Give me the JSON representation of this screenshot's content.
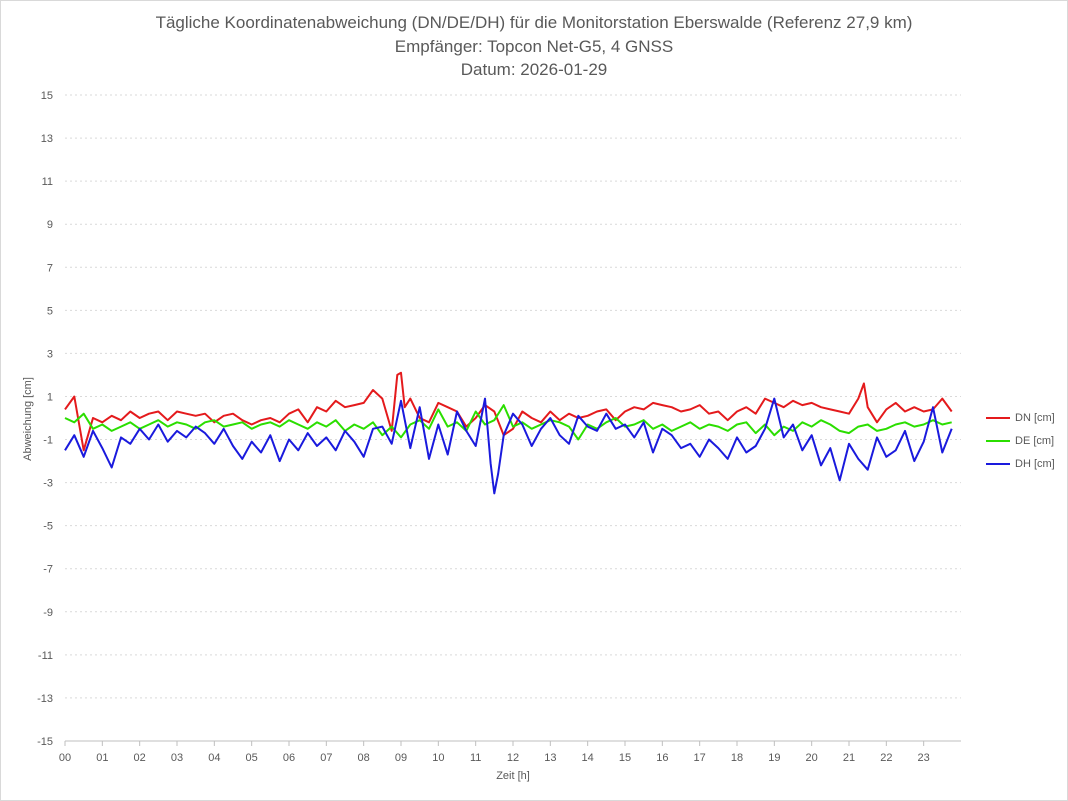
{
  "chart_data": {
    "type": "line",
    "title": [
      "Tägliche Koordinatenabweichung (DN/DE/DH) für die Monitorstation Eberswalde (Referenz 27,9 km)",
      "Empfänger: Topcon Net-G5, 4 GNSS",
      "Datum: 2026-01-29"
    ],
    "xlabel": "Zeit [h]",
    "ylabel": "Abweichung [cm]",
    "xlim": [
      0,
      24
    ],
    "ylim": [
      -15,
      15
    ],
    "x_ticks": [
      {
        "value": 0,
        "label": "00"
      },
      {
        "value": 1,
        "label": "01"
      },
      {
        "value": 2,
        "label": "02"
      },
      {
        "value": 3,
        "label": "03"
      },
      {
        "value": 4,
        "label": "04"
      },
      {
        "value": 5,
        "label": "05"
      },
      {
        "value": 6,
        "label": "06"
      },
      {
        "value": 7,
        "label": "07"
      },
      {
        "value": 8,
        "label": "08"
      },
      {
        "value": 9,
        "label": "09"
      },
      {
        "value": 10,
        "label": "10"
      },
      {
        "value": 11,
        "label": "11"
      },
      {
        "value": 12,
        "label": "12"
      },
      {
        "value": 13,
        "label": "13"
      },
      {
        "value": 14,
        "label": "14"
      },
      {
        "value": 15,
        "label": "15"
      },
      {
        "value": 16,
        "label": "16"
      },
      {
        "value": 17,
        "label": "17"
      },
      {
        "value": 18,
        "label": "18"
      },
      {
        "value": 19,
        "label": "19"
      },
      {
        "value": 20,
        "label": "20"
      },
      {
        "value": 21,
        "label": "21"
      },
      {
        "value": 22,
        "label": "22"
      },
      {
        "value": 23,
        "label": "23"
      }
    ],
    "y_ticks": [
      {
        "value": 15,
        "label": "15"
      },
      {
        "value": 13,
        "label": "13"
      },
      {
        "value": 11,
        "label": "11"
      },
      {
        "value": 9,
        "label": "9"
      },
      {
        "value": 7,
        "label": "7"
      },
      {
        "value": 5,
        "label": "5"
      },
      {
        "value": 3,
        "label": "3"
      },
      {
        "value": 1,
        "label": "1"
      },
      {
        "value": -1,
        "label": "-1"
      },
      {
        "value": -3,
        "label": "-3"
      },
      {
        "value": -5,
        "label": "-5"
      },
      {
        "value": -7,
        "label": "-7"
      },
      {
        "value": -9,
        "label": "-9"
      },
      {
        "value": -11,
        "label": "-11"
      },
      {
        "value": -13,
        "label": "-13"
      },
      {
        "value": -15,
        "label": "-15"
      }
    ],
    "grid": "horizontal dotted",
    "legend_position": "right",
    "series": [
      {
        "name": "DN [cm]",
        "color": "#e41a1c",
        "x": [
          0.0,
          0.25,
          0.5,
          0.75,
          1.0,
          1.25,
          1.5,
          1.75,
          2.0,
          2.25,
          2.5,
          2.75,
          3.0,
          3.25,
          3.5,
          3.75,
          4.0,
          4.25,
          4.5,
          4.75,
          5.0,
          5.25,
          5.5,
          5.75,
          6.0,
          6.25,
          6.5,
          6.75,
          7.0,
          7.25,
          7.5,
          7.75,
          8.0,
          8.25,
          8.5,
          8.75,
          8.9,
          9.0,
          9.1,
          9.25,
          9.5,
          9.75,
          10.0,
          10.25,
          10.5,
          10.75,
          11.0,
          11.25,
          11.5,
          11.75,
          12.0,
          12.25,
          12.5,
          12.75,
          13.0,
          13.25,
          13.5,
          13.75,
          14.0,
          14.25,
          14.5,
          14.75,
          15.0,
          15.25,
          15.5,
          15.75,
          16.0,
          16.25,
          16.5,
          16.75,
          17.0,
          17.25,
          17.5,
          17.75,
          18.0,
          18.25,
          18.5,
          18.75,
          19.0,
          19.25,
          19.5,
          19.75,
          20.0,
          20.25,
          20.5,
          20.75,
          21.0,
          21.25,
          21.4,
          21.5,
          21.75,
          22.0,
          22.25,
          22.5,
          22.75,
          23.0,
          23.25,
          23.5,
          23.75
        ],
        "values": [
          0.4,
          1.0,
          -1.5,
          0.0,
          -0.2,
          0.1,
          -0.1,
          0.3,
          0.0,
          0.2,
          0.3,
          -0.1,
          0.3,
          0.2,
          0.1,
          0.2,
          -0.2,
          0.1,
          0.2,
          -0.1,
          -0.3,
          -0.1,
          0.0,
          -0.2,
          0.2,
          0.4,
          -0.2,
          0.5,
          0.3,
          0.8,
          0.5,
          0.6,
          0.7,
          1.3,
          0.9,
          -0.6,
          2.0,
          2.1,
          0.5,
          0.9,
          0.0,
          -0.2,
          0.7,
          0.5,
          0.3,
          -0.4,
          0.0,
          0.6,
          0.3,
          -0.8,
          -0.5,
          0.3,
          0.0,
          -0.2,
          0.3,
          -0.1,
          0.2,
          0.0,
          0.1,
          0.3,
          0.4,
          -0.1,
          0.3,
          0.5,
          0.4,
          0.7,
          0.6,
          0.5,
          0.3,
          0.4,
          0.6,
          0.2,
          0.3,
          -0.1,
          0.3,
          0.5,
          0.2,
          0.9,
          0.7,
          0.5,
          0.8,
          0.6,
          0.7,
          0.5,
          0.4,
          0.3,
          0.2,
          0.9,
          1.6,
          0.5,
          -0.2,
          0.4,
          0.7,
          0.3,
          0.5,
          0.3,
          0.4,
          0.9,
          0.3
        ]
      },
      {
        "name": "DE [cm]",
        "color": "#2bde00",
        "x": [
          0.0,
          0.25,
          0.5,
          0.75,
          1.0,
          1.25,
          1.5,
          1.75,
          2.0,
          2.25,
          2.5,
          2.75,
          3.0,
          3.25,
          3.5,
          3.75,
          4.0,
          4.25,
          4.5,
          4.75,
          5.0,
          5.25,
          5.5,
          5.75,
          6.0,
          6.25,
          6.5,
          6.75,
          7.0,
          7.25,
          7.5,
          7.75,
          8.0,
          8.25,
          8.5,
          8.75,
          9.0,
          9.25,
          9.5,
          9.75,
          10.0,
          10.25,
          10.5,
          10.75,
          11.0,
          11.25,
          11.5,
          11.75,
          12.0,
          12.25,
          12.5,
          12.75,
          13.0,
          13.25,
          13.5,
          13.75,
          14.0,
          14.25,
          14.5,
          14.75,
          15.0,
          15.25,
          15.5,
          15.75,
          16.0,
          16.25,
          16.5,
          16.75,
          17.0,
          17.25,
          17.5,
          17.75,
          18.0,
          18.25,
          18.5,
          18.75,
          19.0,
          19.25,
          19.5,
          19.75,
          20.0,
          20.25,
          20.5,
          20.75,
          21.0,
          21.25,
          21.5,
          21.75,
          22.0,
          22.25,
          22.5,
          22.75,
          23.0,
          23.25,
          23.5,
          23.75
        ],
        "values": [
          0.0,
          -0.2,
          0.2,
          -0.5,
          -0.3,
          -0.6,
          -0.4,
          -0.2,
          -0.5,
          -0.3,
          -0.1,
          -0.4,
          -0.2,
          -0.3,
          -0.5,
          -0.2,
          -0.1,
          -0.4,
          -0.3,
          -0.2,
          -0.5,
          -0.3,
          -0.2,
          -0.4,
          -0.1,
          -0.3,
          -0.5,
          -0.2,
          -0.4,
          -0.1,
          -0.6,
          -0.3,
          -0.5,
          -0.2,
          -0.8,
          -0.4,
          -0.9,
          -0.3,
          -0.1,
          -0.5,
          0.4,
          -0.4,
          -0.2,
          -0.6,
          0.3,
          -0.3,
          -0.1,
          0.6,
          -0.4,
          -0.2,
          -0.5,
          -0.3,
          -0.1,
          -0.2,
          -0.4,
          -1.0,
          -0.3,
          -0.5,
          -0.2,
          0.0,
          -0.4,
          -0.3,
          -0.1,
          -0.5,
          -0.3,
          -0.6,
          -0.4,
          -0.2,
          -0.5,
          -0.3,
          -0.4,
          -0.6,
          -0.3,
          -0.2,
          -0.7,
          -0.3,
          -0.8,
          -0.4,
          -0.6,
          -0.2,
          -0.4,
          -0.1,
          -0.3,
          -0.6,
          -0.7,
          -0.4,
          -0.3,
          -0.6,
          -0.5,
          -0.3,
          -0.2,
          -0.4,
          -0.3,
          -0.1,
          -0.3,
          -0.2
        ]
      },
      {
        "name": "DH [cm]",
        "color": "#1a1add",
        "x": [
          0.0,
          0.25,
          0.5,
          0.75,
          1.0,
          1.25,
          1.5,
          1.75,
          2.0,
          2.25,
          2.5,
          2.75,
          3.0,
          3.25,
          3.5,
          3.75,
          4.0,
          4.25,
          4.5,
          4.75,
          5.0,
          5.25,
          5.5,
          5.75,
          6.0,
          6.25,
          6.5,
          6.75,
          7.0,
          7.25,
          7.5,
          7.75,
          8.0,
          8.25,
          8.5,
          8.75,
          9.0,
          9.25,
          9.5,
          9.75,
          10.0,
          10.25,
          10.5,
          10.75,
          11.0,
          11.25,
          11.4,
          11.5,
          11.6,
          11.75,
          12.0,
          12.25,
          12.5,
          12.75,
          13.0,
          13.25,
          13.5,
          13.75,
          14.0,
          14.25,
          14.5,
          14.75,
          15.0,
          15.25,
          15.5,
          15.75,
          16.0,
          16.25,
          16.5,
          16.75,
          17.0,
          17.25,
          17.5,
          17.75,
          18.0,
          18.25,
          18.5,
          18.75,
          19.0,
          19.25,
          19.5,
          19.75,
          20.0,
          20.25,
          20.5,
          20.75,
          21.0,
          21.25,
          21.5,
          21.75,
          22.0,
          22.25,
          22.5,
          22.75,
          23.0,
          23.25,
          23.5,
          23.75
        ],
        "values": [
          -1.5,
          -0.8,
          -1.8,
          -0.6,
          -1.4,
          -2.3,
          -0.9,
          -1.2,
          -0.5,
          -1.0,
          -0.3,
          -1.1,
          -0.6,
          -0.9,
          -0.4,
          -0.7,
          -1.2,
          -0.5,
          -1.3,
          -1.9,
          -1.1,
          -1.6,
          -0.8,
          -2.0,
          -1.0,
          -1.5,
          -0.7,
          -1.3,
          -0.9,
          -1.5,
          -0.6,
          -1.1,
          -1.8,
          -0.5,
          -0.4,
          -1.2,
          0.8,
          -1.4,
          0.5,
          -1.9,
          -0.3,
          -1.7,
          0.3,
          -0.6,
          -1.3,
          0.9,
          -2.1,
          -3.5,
          -2.6,
          -0.8,
          0.2,
          -0.3,
          -1.3,
          -0.5,
          0.0,
          -0.8,
          -1.2,
          0.1,
          -0.4,
          -0.6,
          0.2,
          -0.5,
          -0.3,
          -0.9,
          -0.2,
          -1.6,
          -0.5,
          -0.8,
          -1.4,
          -1.2,
          -1.8,
          -1.0,
          -1.4,
          -1.9,
          -0.9,
          -1.6,
          -1.3,
          -0.5,
          0.9,
          -0.9,
          -0.3,
          -1.5,
          -0.8,
          -2.2,
          -1.4,
          -2.9,
          -1.2,
          -1.9,
          -2.4,
          -0.9,
          -1.8,
          -1.5,
          -0.6,
          -2.0,
          -1.1,
          0.5,
          -1.6,
          -0.5
        ]
      }
    ]
  }
}
